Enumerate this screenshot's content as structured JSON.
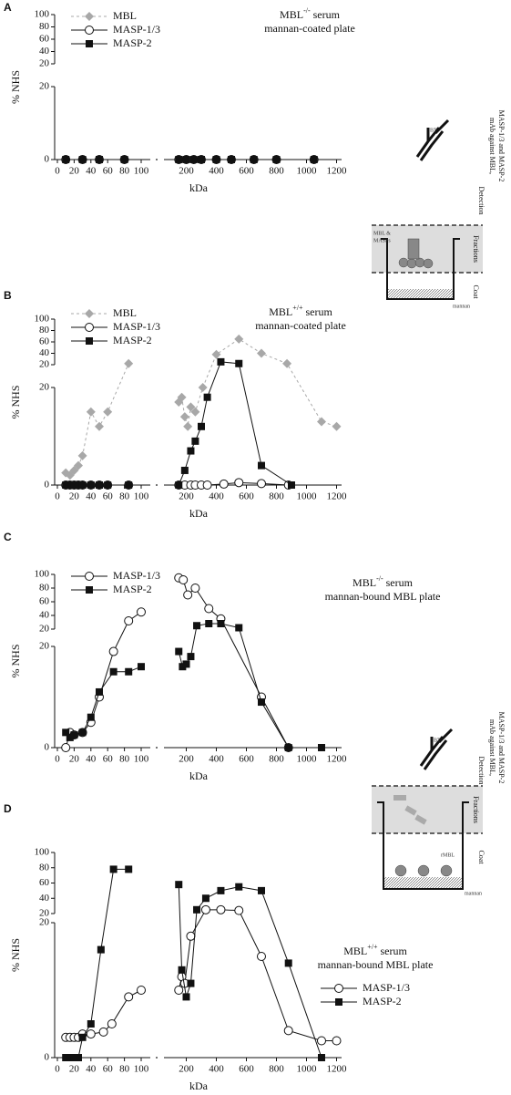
{
  "chart_data": [
    {
      "type": "line",
      "panel": "A",
      "title_parts": [
        "MBL",
        "-/-",
        " serum"
      ],
      "subtitle": "mannan-coated plate",
      "xlabel": "kDa",
      "ylabel": "% NHS",
      "legend": "upper left",
      "ylim": [
        0,
        100
      ],
      "yticks_lower": [
        0,
        20
      ],
      "yticks_upper": [
        20,
        40,
        60,
        80,
        100
      ],
      "xlim": [
        0,
        1200
      ],
      "xticks_left": [
        0,
        20,
        40,
        60,
        80,
        100
      ],
      "xticks_right": [
        200,
        400,
        600,
        800,
        1000,
        1200
      ],
      "series": [
        {
          "name": "MBL",
          "color": "#a8a8a8",
          "marker": "diamond",
          "line_style": "dashed",
          "x": [
            10,
            30,
            50,
            80,
            150,
            200,
            250,
            300,
            400,
            500,
            650,
            800,
            1050
          ],
          "values": [
            0,
            0,
            0,
            0,
            0,
            0,
            0,
            0,
            0,
            0,
            0,
            0,
            0
          ]
        },
        {
          "name": "MASP-1/3",
          "color": "#111111",
          "marker": "circle",
          "line_style": "solid",
          "x": [
            10,
            30,
            50,
            80,
            150,
            200,
            250,
            300,
            400,
            500,
            650,
            800,
            1050
          ],
          "values": [
            0,
            0,
            0,
            0,
            0,
            0,
            0,
            0,
            0,
            0,
            0,
            0,
            0
          ]
        },
        {
          "name": "MASP-2",
          "color": "#111111",
          "marker": "square",
          "line_style": "solid",
          "x": [
            10,
            30,
            50,
            80,
            150,
            200,
            250,
            300,
            400,
            500,
            650,
            800,
            1050
          ],
          "values": [
            0,
            0,
            0,
            0,
            0,
            0,
            0,
            0,
            0,
            0,
            0,
            0,
            0
          ]
        }
      ]
    },
    {
      "type": "line",
      "panel": "B",
      "title_parts": [
        "MBL",
        "+/+",
        " serum"
      ],
      "subtitle": "mannan-coated plate",
      "xlabel": "kDa",
      "ylabel": "% NHS",
      "legend": "upper left",
      "ylim": [
        0,
        100
      ],
      "yticks_lower": [
        0,
        20
      ],
      "yticks_upper": [
        20,
        40,
        60,
        80,
        100
      ],
      "xlim": [
        0,
        1200
      ],
      "xticks_left": [
        0,
        20,
        40,
        60,
        80,
        100
      ],
      "xticks_right": [
        200,
        400,
        600,
        800,
        1000,
        1200
      ],
      "series": [
        {
          "name": "MBL",
          "color": "#a8a8a8",
          "marker": "diamond",
          "line_style": "dashed",
          "x": [
            10,
            15,
            20,
            25,
            30,
            40,
            50,
            60,
            85,
            150,
            170,
            190,
            210,
            230,
            260,
            310,
            400,
            550,
            700,
            870,
            1100,
            1200
          ],
          "values": [
            2.5,
            2,
            3,
            4,
            6,
            15,
            12,
            15,
            22,
            17,
            18,
            14,
            12,
            16,
            15,
            20,
            38,
            65,
            40,
            22,
            13,
            12
          ]
        },
        {
          "name": "MASP-1/3",
          "color": "#111111",
          "marker": "circle",
          "line_style": "solid",
          "x": [
            10,
            15,
            20,
            25,
            30,
            40,
            50,
            60,
            85,
            150,
            190,
            230,
            260,
            300,
            340,
            450,
            550,
            700,
            880
          ],
          "values": [
            0,
            0,
            0,
            0,
            0,
            0,
            0,
            0,
            0,
            0,
            0,
            0,
            0,
            0,
            0,
            0.2,
            0.5,
            0.3,
            0
          ]
        },
        {
          "name": "MASP-2",
          "color": "#111111",
          "marker": "square",
          "line_style": "solid",
          "x": [
            10,
            15,
            20,
            25,
            30,
            40,
            50,
            60,
            85,
            150,
            190,
            230,
            260,
            300,
            340,
            430,
            550,
            700,
            900
          ],
          "values": [
            0,
            0,
            0,
            0,
            0,
            0,
            0,
            0,
            0,
            0,
            3,
            7,
            9,
            12,
            18,
            25,
            22,
            4,
            0
          ]
        }
      ]
    },
    {
      "type": "line",
      "panel": "C",
      "title_parts": [
        "MBL",
        "-/-",
        " serum"
      ],
      "subtitle": "mannan-bound  MBL plate",
      "xlabel": "kDa",
      "ylabel": "% NHS",
      "legend": "upper left",
      "ylim": [
        0,
        100
      ],
      "yticks_lower": [
        0,
        20
      ],
      "yticks_upper": [
        20,
        40,
        60,
        80,
        100
      ],
      "xlim": [
        0,
        1200
      ],
      "xticks_left": [
        0,
        20,
        40,
        60,
        80,
        100
      ],
      "xticks_right": [
        200,
        400,
        600,
        800,
        1000,
        1200
      ],
      "series": [
        {
          "name": "MASP-1/3",
          "color": "#111111",
          "marker": "circle",
          "line_style": "solid",
          "x": [
            10,
            15,
            20,
            30,
            40,
            50,
            67,
            85,
            100,
            150,
            180,
            210,
            260,
            350,
            430,
            700,
            880
          ],
          "values": [
            0,
            3,
            2.5,
            3,
            5,
            10,
            19,
            32,
            45,
            95,
            92,
            70,
            80,
            50,
            35,
            10,
            0
          ]
        },
        {
          "name": "MASP-2",
          "color": "#111111",
          "marker": "square",
          "line_style": "solid",
          "x": [
            10,
            15,
            20,
            30,
            40,
            50,
            67,
            85,
            100,
            150,
            175,
            200,
            230,
            270,
            350,
            430,
            550,
            700,
            880,
            1100
          ],
          "values": [
            3,
            2,
            2.5,
            3,
            6,
            11,
            15,
            15,
            16,
            19,
            16,
            16.5,
            18,
            25,
            28,
            28,
            22,
            9,
            0,
            0
          ]
        }
      ]
    },
    {
      "type": "line",
      "panel": "D",
      "title_parts": [
        "MBL",
        "+/+",
        " serum"
      ],
      "subtitle": "mannan-bound  MBL plate",
      "xlabel": "kDa",
      "ylabel": "% NHS",
      "legend": "lower right",
      "ylim": [
        0,
        100
      ],
      "yticks_lower": [
        0,
        20
      ],
      "yticks_upper": [
        20,
        40,
        60,
        80,
        100
      ],
      "xlim": [
        0,
        1200
      ],
      "xticks_left": [
        0,
        20,
        40,
        60,
        80,
        100
      ],
      "xticks_right": [
        200,
        400,
        600,
        800,
        1000,
        1200
      ],
      "series": [
        {
          "name": "MASP-1/3",
          "color": "#111111",
          "marker": "circle",
          "line_style": "solid",
          "x": [
            10,
            15,
            20,
            25,
            30,
            40,
            55,
            65,
            85,
            100,
            150,
            170,
            190,
            230,
            330,
            430,
            550,
            700,
            880,
            1100,
            1200
          ],
          "values": [
            3,
            3,
            3,
            3,
            3.5,
            3.5,
            3.8,
            5,
            9,
            10,
            10,
            12,
            11,
            18,
            25,
            25,
            24,
            15,
            4,
            2.5,
            2.5
          ]
        },
        {
          "name": "MASP-2",
          "color": "#111111",
          "marker": "square",
          "line_style": "solid",
          "x": [
            10,
            15,
            20,
            25,
            30,
            40,
            52,
            67,
            85,
            150,
            170,
            200,
            230,
            270,
            330,
            430,
            550,
            700,
            880,
            1100
          ],
          "values": [
            0,
            0,
            0,
            0,
            3,
            5,
            16,
            78,
            78,
            58,
            13,
            9,
            11,
            25,
            40,
            50,
            55,
            50,
            14,
            0
          ]
        }
      ]
    }
  ],
  "insets": [
    {
      "antibody": [
        "mAb against MBL,",
        "MASP-1/3 and MASP-2"
      ],
      "tag": "BT",
      "layers": [
        "Detection",
        "Fractions",
        "Coat"
      ],
      "labels": [
        "MBL &",
        "MASPs",
        "mannan"
      ]
    },
    {
      "antibody": [
        "mAb against MBL,",
        "MASP-1/3 and MASP-2"
      ],
      "tag": "BT",
      "layers": [
        "Detection",
        "Fractions",
        "Coat"
      ],
      "labels": [
        "rMBL",
        "mannan"
      ]
    }
  ]
}
